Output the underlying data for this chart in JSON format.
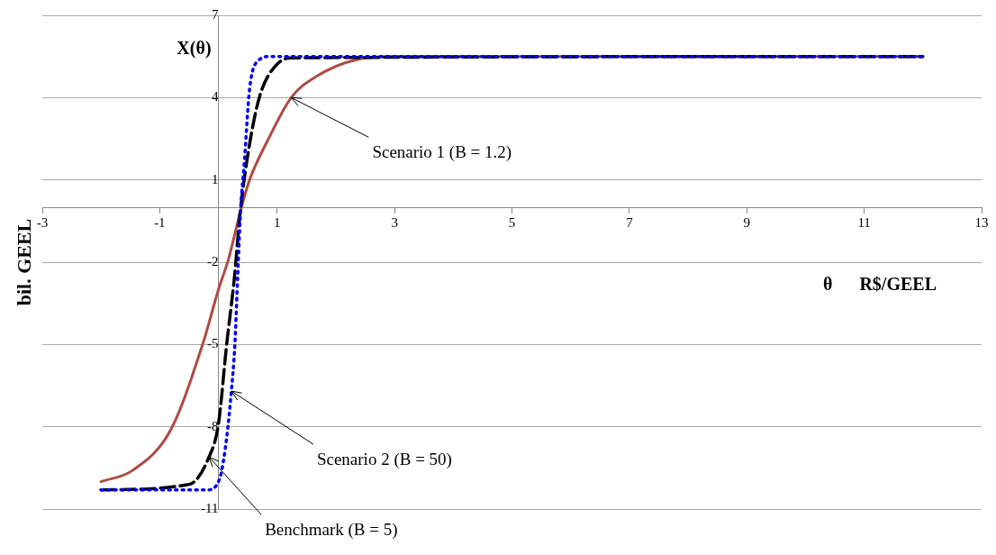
{
  "chart_data": {
    "type": "line",
    "xlabel": "θ      R$/GEEL",
    "ylabel": "bil. GEEL",
    "annotations": [
      "X(θ)",
      {
        "text": "Scenario 1 (B = 1.2)",
        "x": 1.24,
        "y": 4
      },
      {
        "text": "Scenario 2 (B = 50)",
        "x": 0.22,
        "y": -6.7
      },
      {
        "text": "Benchmark (B = 5)",
        "x": -0.16,
        "y": -9.1
      }
    ],
    "series": [
      {
        "color": "#b04a42",
        "line_style": "solid",
        "x": [
          -2,
          -1.47,
          -0.81,
          -0.27,
          0,
          0.17,
          0.38,
          0.53,
          0.83,
          1.24,
          1.65,
          2.38,
          3,
          12
        ],
        "values": [
          -10,
          -9.6,
          -8.1,
          -5,
          -3,
          -1.9,
          -0.1,
          1,
          2.4,
          4,
          4.75,
          5.4,
          5.5,
          5.5
        ]
      },
      {
        "color": "#000000",
        "line_style": "dashed",
        "x": [
          -2,
          -0.5,
          -0.16,
          0,
          0.14,
          0.27,
          0.37,
          0.53,
          0.71,
          0.99,
          1.25,
          12
        ],
        "values": [
          -10.3,
          -10.1,
          -9.1,
          -7.9,
          -5,
          -2.6,
          -0.2,
          2.3,
          4.1,
          5.2,
          5.45,
          5.5
        ]
      },
      {
        "color": "#0000ff",
        "line_style": "dotted",
        "x": [
          -2,
          -0.19,
          0.02,
          0.14,
          0.22,
          0.28,
          0.33,
          0.38,
          0.44,
          0.53,
          0.68,
          0.88,
          12
        ],
        "values": [
          -10.3,
          -10.3,
          -9.9,
          -8.4,
          -6.7,
          -5,
          -2.4,
          0,
          1.6,
          4.3,
          5.35,
          5.5,
          5.5
        ]
      }
    ],
    "xlim": [
      -3,
      13
    ],
    "xticks": [
      -3,
      -1,
      1,
      3,
      5,
      7,
      9,
      11,
      13
    ],
    "ylim": [
      -11,
      7
    ],
    "yticks": [
      -11,
      -8,
      -5,
      -2,
      1,
      4,
      7
    ],
    "grid": "y",
    "legend": false,
    "marker": "none"
  }
}
